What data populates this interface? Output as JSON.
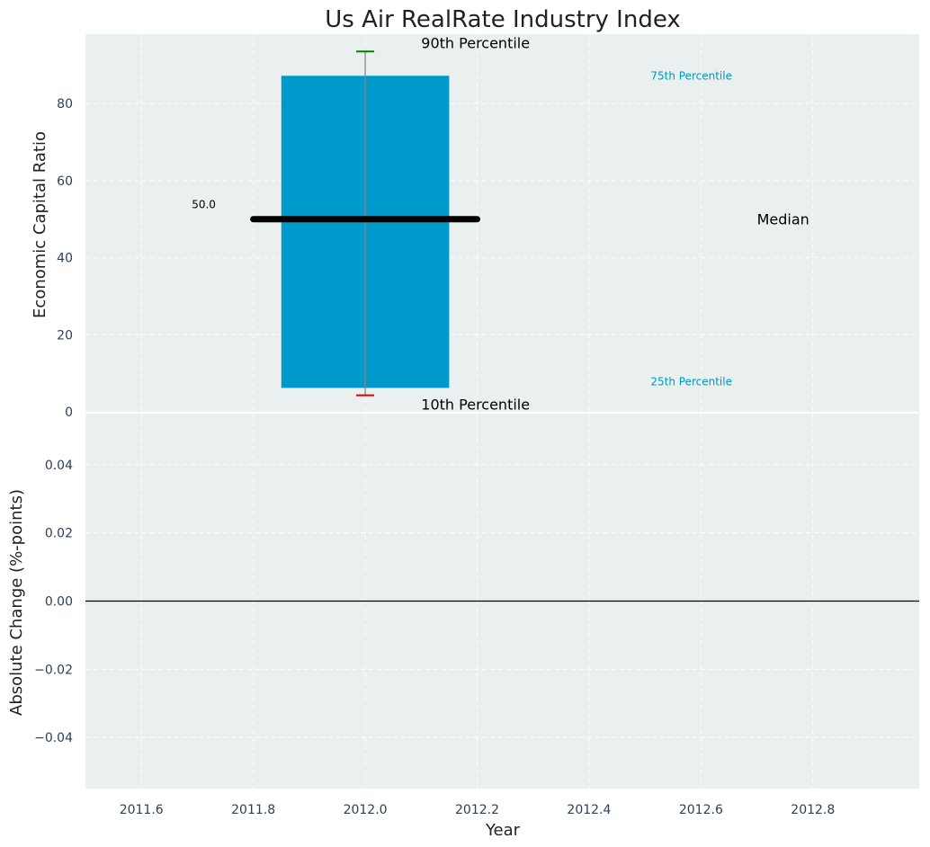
{
  "chart_data": [
    {
      "type": "box",
      "title": "Us Air RealRate Industry Index",
      "xlabel": "",
      "ylabel": "Economic Capital Ratio",
      "ylim": [
        0,
        98
      ],
      "yticks": [
        0,
        20,
        40,
        60,
        80
      ],
      "xlim": [
        2011.5,
        2012.99
      ],
      "grid": true,
      "colors": {
        "box": "#0099cc",
        "whisker": "#888888",
        "top_cap": "#008000",
        "bottom_cap": "#dd0000",
        "median": "#000000",
        "quartile_text": "#0099bb"
      },
      "x": 2012.0,
      "box_halfwidth": 0.15,
      "p10": 4.3,
      "p25": 6.2,
      "median": 50.0,
      "p75": 87.2,
      "p90": 93.5,
      "median_line_extent": [
        2011.8,
        2012.2
      ],
      "annotations": {
        "median_value": "50.0",
        "median": "Median",
        "p90": "90th Percentile",
        "p10": "10th Percentile",
        "p75": "75th Percentile",
        "p25": "25th Percentile"
      }
    },
    {
      "type": "line",
      "title": "",
      "xlabel": "Year",
      "ylabel": "Absolute Change (%-points)",
      "ylim": [
        -0.055,
        0.055
      ],
      "yticks": [
        -0.04,
        -0.02,
        0.0,
        0.02,
        0.04
      ],
      "ytick_labels": [
        "−0.04",
        "−0.02",
        "0.00",
        "0.02",
        "0.04"
      ],
      "xlim": [
        2011.5,
        2012.99
      ],
      "xticks": [
        2011.6,
        2011.8,
        2012.0,
        2012.2,
        2012.4,
        2012.6,
        2012.8
      ],
      "xtick_labels": [
        "2011.6",
        "2011.8",
        "2012.0",
        "2012.2",
        "2012.4",
        "2012.6",
        "2012.8"
      ],
      "zero_line": 0.0,
      "grid": true,
      "series": []
    }
  ]
}
